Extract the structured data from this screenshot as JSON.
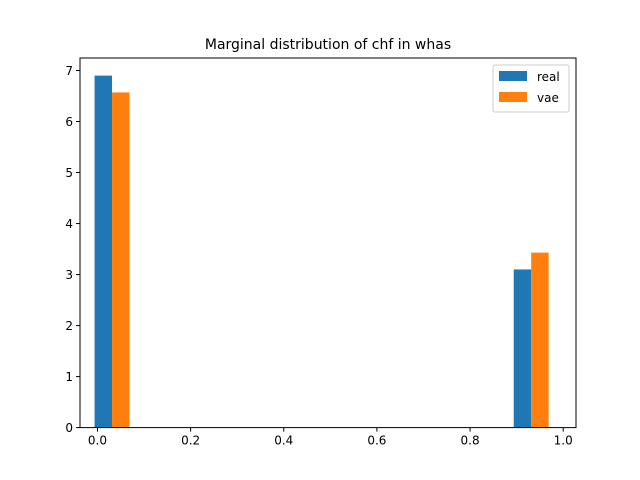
{
  "chart_data": {
    "type": "bar",
    "title": "Marginal distribution of chf in whas",
    "xlabel": "",
    "ylabel": "",
    "xlim": [
      -0.0375,
      1.0275
    ],
    "ylim": [
      0,
      7.245
    ],
    "xticks": [
      "0.0",
      "0.2",
      "0.4",
      "0.6",
      "0.8",
      "1.0"
    ],
    "yticks": [
      "0",
      "1",
      "2",
      "3",
      "4",
      "5",
      "6",
      "7"
    ],
    "bar_width": 0.0375,
    "legend_position": "top-right",
    "series": [
      {
        "name": "real",
        "color": "#1f77b4",
        "x": [
          0.0125,
          0.9125
        ],
        "values": [
          6.9,
          3.1
        ]
      },
      {
        "name": "vae",
        "color": "#ff7f0e",
        "x": [
          0.05,
          0.95
        ],
        "values": [
          6.57,
          3.43
        ]
      }
    ]
  }
}
